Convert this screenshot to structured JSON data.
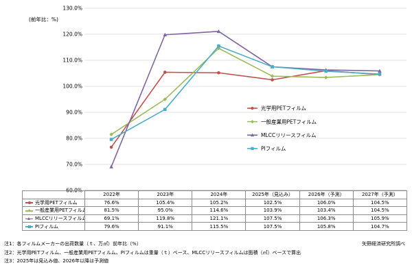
{
  "chart_data": {
    "type": "line",
    "title": "",
    "ylabel": "(前年比：%)",
    "xlabel": "",
    "categories": [
      "2022年",
      "2023年",
      "2024年",
      "2025年（見込み）",
      "2026年（予測）",
      "2027年（予測）"
    ],
    "ylim": [
      60,
      130
    ],
    "yticks": [
      60,
      70,
      80,
      90,
      100,
      110,
      120,
      130
    ],
    "ytick_labels": [
      "60.0%",
      "70.0%",
      "80.0%",
      "90.0%",
      "100.0%",
      "110.0%",
      "120.0%",
      "130.0%"
    ],
    "grid": true,
    "legend_position": "center-right",
    "series": [
      {
        "name": "光学用PETフィルム",
        "color": "#c0504d",
        "marker": "circle",
        "values": [
          76.6,
          105.4,
          105.2,
          102.5,
          106.0,
          104.5
        ]
      },
      {
        "name": "一般産業用PETフィルム",
        "color": "#9bbb59",
        "marker": "diamond",
        "values": [
          81.5,
          95.0,
          114.6,
          103.9,
          103.4,
          104.5
        ]
      },
      {
        "name": "MLCCリリースフィルム",
        "color": "#8064a2",
        "marker": "triangle",
        "values": [
          69.1,
          119.8,
          121.1,
          107.5,
          106.3,
          105.9
        ]
      },
      {
        "name": "PIフィルム",
        "color": "#4bacc6",
        "marker": "square",
        "values": [
          79.6,
          91.1,
          115.5,
          107.5,
          105.8,
          104.7
        ]
      }
    ],
    "table": {
      "rows": [
        [
          "76.6%",
          "105.4%",
          "105.2%",
          "102.5%",
          "106.0%",
          "104.5%"
        ],
        [
          "81.5%",
          "95.0%",
          "114.6%",
          "103.9%",
          "103.4%",
          "104.5%"
        ],
        [
          "69.1%",
          "119.8%",
          "121.1%",
          "107.5%",
          "106.3%",
          "105.9%"
        ],
        [
          "79.6%",
          "91.1%",
          "115.5%",
          "107.5%",
          "105.8%",
          "104.7%"
        ]
      ]
    }
  },
  "notes": [
    "注1：各フィルムメーカーの出荷数量（ｔ、万㎡）前年比（%）",
    "注2：光学用PETフィルム、一般産業用PETフィルム、PIフィルムは重量（ｔ）ベース、MLCCリリースフィルムは面積（㎡）ベースで算出",
    "注3：2025年は見込み値、2026年以降は予測値"
  ],
  "source": "矢野経済研究所調べ"
}
